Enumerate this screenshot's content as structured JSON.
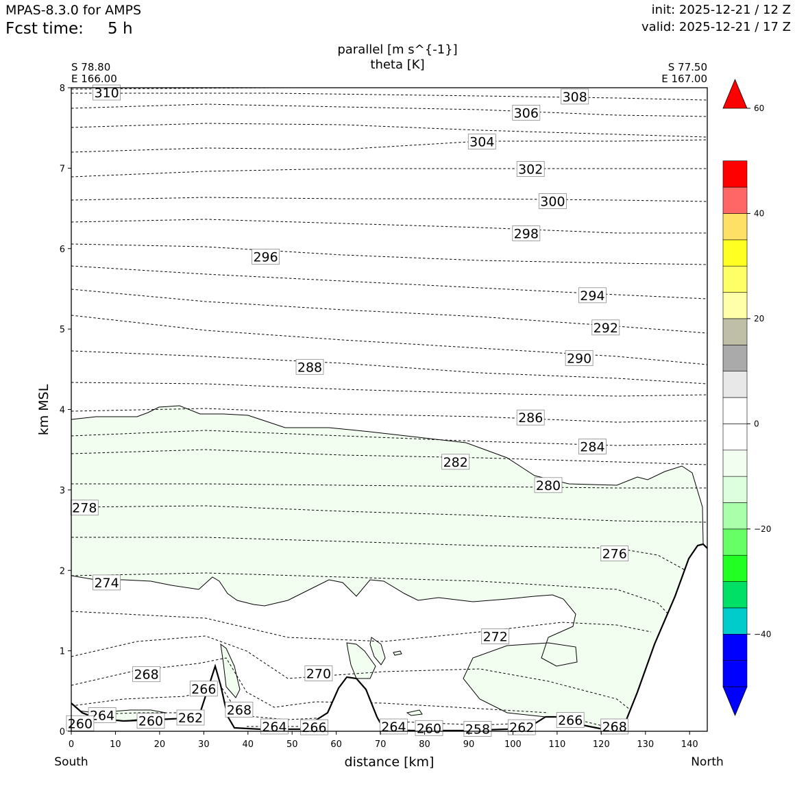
{
  "header": {
    "model": "MPAS-8.3.0 for AMPS",
    "fcst_label": "Fcst time:",
    "fcst_value": "5 h",
    "init": "init: 2025-12-21 / 12 Z",
    "valid": "valid: 2025-12-21 / 17 Z"
  },
  "chart_data": {
    "type": "cross-section",
    "title": "parallel [m s^{-1}]",
    "subtitle": "theta [K]",
    "xlabel": "distance [km]",
    "ylabel": "km MSL",
    "xlim": [
      0,
      144
    ],
    "ylim": [
      0,
      8
    ],
    "xticks": [
      0,
      10,
      20,
      30,
      40,
      50,
      60,
      70,
      80,
      90,
      100,
      110,
      120,
      130,
      140
    ],
    "yticks": [
      0,
      1,
      2,
      3,
      4,
      5,
      6,
      7,
      8
    ],
    "start_point": {
      "lat": "S 78.80",
      "lon": "E 166.00"
    },
    "end_point": {
      "lat": "S 77.50",
      "lon": "E 167.00"
    },
    "x_end_labels": {
      "left": "South",
      "right": "North"
    },
    "theta_contour_labels": [
      {
        "label": "310",
        "x": 8,
        "y": 7.94
      },
      {
        "label": "308",
        "x": 114,
        "y": 7.89
      },
      {
        "label": "306",
        "x": 103,
        "y": 7.69
      },
      {
        "label": "304",
        "x": 93,
        "y": 7.33
      },
      {
        "label": "302",
        "x": 104,
        "y": 6.99
      },
      {
        "label": "300",
        "x": 109,
        "y": 6.59
      },
      {
        "label": "298",
        "x": 103,
        "y": 6.19
      },
      {
        "label": "296",
        "x": 44,
        "y": 5.9
      },
      {
        "label": "294",
        "x": 118,
        "y": 5.42
      },
      {
        "label": "292",
        "x": 121,
        "y": 5.02
      },
      {
        "label": "290",
        "x": 115,
        "y": 4.64
      },
      {
        "label": "288",
        "x": 54,
        "y": 4.53
      },
      {
        "label": "286",
        "x": 104,
        "y": 3.9
      },
      {
        "label": "284",
        "x": 118,
        "y": 3.54
      },
      {
        "label": "282",
        "x": 87,
        "y": 3.35
      },
      {
        "label": "280",
        "x": 108,
        "y": 3.06
      },
      {
        "label": "278",
        "x": 3,
        "y": 2.78
      },
      {
        "label": "276",
        "x": 123,
        "y": 2.21
      },
      {
        "label": "274",
        "x": 8,
        "y": 1.85
      },
      {
        "label": "272",
        "x": 96,
        "y": 1.18
      },
      {
        "label": "270",
        "x": 56,
        "y": 0.72
      },
      {
        "label": "268",
        "x": 17,
        "y": 0.71
      },
      {
        "label": "268",
        "x": 38,
        "y": 0.27
      },
      {
        "label": "268",
        "x": 123,
        "y": 0.06
      },
      {
        "label": "266",
        "x": 30,
        "y": 0.53
      },
      {
        "label": "266",
        "x": 113,
        "y": 0.14
      },
      {
        "label": "266",
        "x": 55,
        "y": 0.05
      },
      {
        "label": "264",
        "x": 7,
        "y": 0.2
      },
      {
        "label": "264",
        "x": 46,
        "y": 0.06
      },
      {
        "label": "264",
        "x": 73,
        "y": 0.06
      },
      {
        "label": "262",
        "x": 27,
        "y": 0.17
      },
      {
        "label": "262",
        "x": 102,
        "y": 0.05
      },
      {
        "label": "260",
        "x": 2,
        "y": 0.1
      },
      {
        "label": "260",
        "x": 18,
        "y": 0.13
      },
      {
        "label": "260",
        "x": 81,
        "y": 0.04
      },
      {
        "label": "258",
        "x": 92,
        "y": 0.03
      }
    ],
    "colorbar": {
      "min": -50,
      "max": 60,
      "step": 5,
      "extend": "both",
      "tick_labels": [
        "60",
        "40",
        "20",
        "0",
        "−20",
        "−40"
      ],
      "tick_values": [
        60,
        40,
        20,
        0,
        -20,
        -40
      ],
      "colors_low_to_high": [
        "#0000ff",
        "#0000ff",
        "#00cccc",
        "#00e066",
        "#22ff22",
        "#66ff66",
        "#aaffaa",
        "#ddffdd",
        "#f2fff0",
        "#ffffff",
        "#ffffff",
        "#e8e8e8",
        "#aaaaaa",
        "#bfbfa8",
        "#ffffaa",
        "#ffff66",
        "#ffff22",
        "#ffe066",
        "#ff6666",
        "#ff0000"
      ],
      "under_color": "#0000ff",
      "over_color": "#ff0000"
    }
  }
}
